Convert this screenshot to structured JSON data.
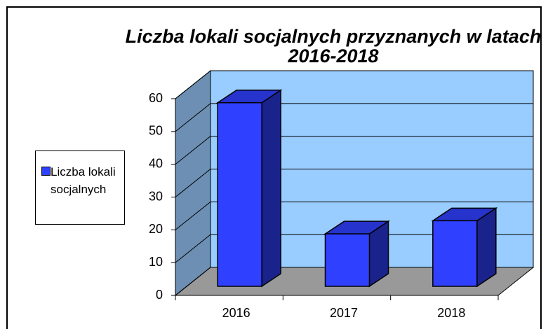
{
  "chart_data": {
    "type": "bar3d",
    "title": "Liczba lokali socjalnych przyznanych w latach 2016-2018",
    "categories": [
      "2016",
      "2017",
      "2018"
    ],
    "series": [
      {
        "name": "Liczba lokali socjalnych",
        "color": "#3040ff",
        "values": [
          56,
          16,
          20
        ]
      }
    ],
    "ylim": [
      0,
      60
    ],
    "yticks": [
      0,
      10,
      20,
      30,
      40,
      50,
      60
    ],
    "grid": true,
    "legend": "left"
  }
}
